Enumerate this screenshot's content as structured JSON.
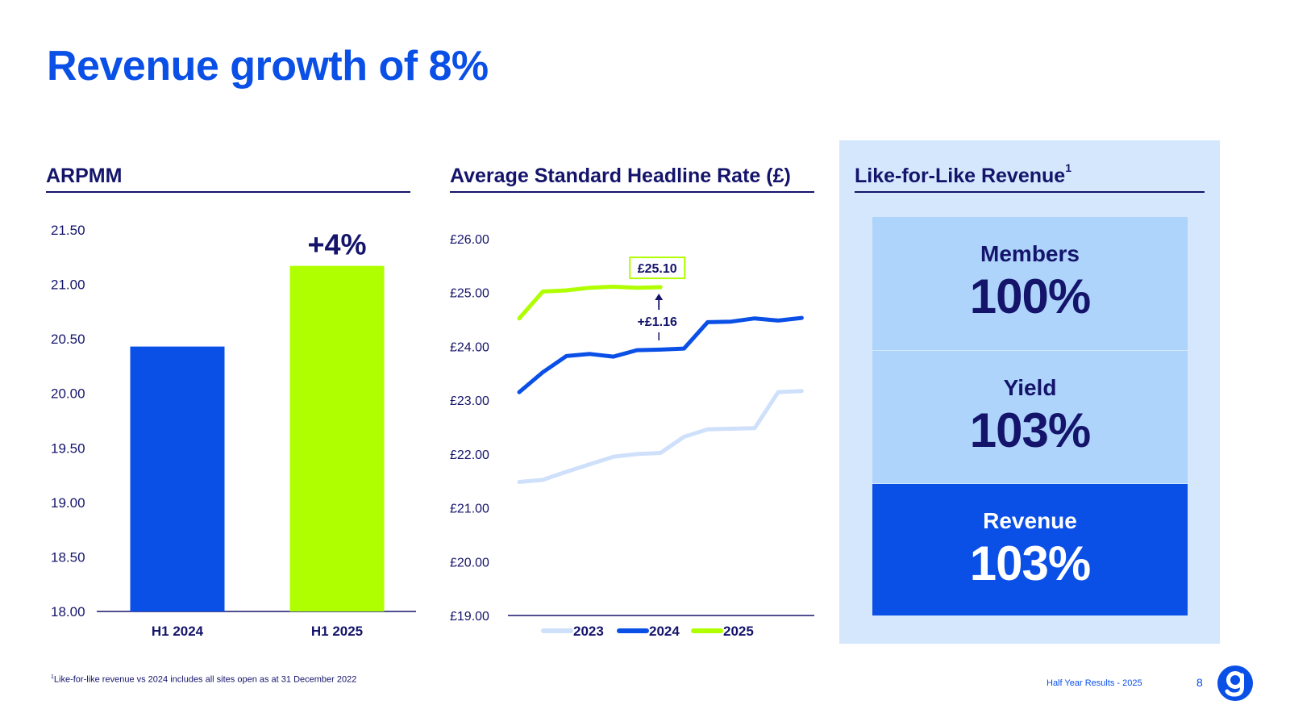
{
  "title": "Revenue growth of 8%",
  "arpmm": {
    "heading": "ARPMM",
    "annotation": "+4%"
  },
  "rate": {
    "heading": "Average Standard Headline Rate (£)",
    "callout_value": "£25.10",
    "callout_delta": "+£1.16"
  },
  "lfl": {
    "heading": "Like-for-Like Revenue",
    "heading_sup": "1",
    "cards": [
      {
        "label": "Members",
        "value": "100%"
      },
      {
        "label": "Yield",
        "value": "103%"
      },
      {
        "label": "Revenue",
        "value": "103%"
      }
    ]
  },
  "footnote": {
    "sup": "1",
    "text": "Like-for-like revenue vs 2024 includes all sites open as at 31 December 2022"
  },
  "footer": {
    "text": "Half Year Results - 2025",
    "page": "8"
  },
  "logo_icon": "g-logo-icon",
  "colors": {
    "brand_blue": "#0a4fe6",
    "navy": "#14146b",
    "lime": "#b0ff00",
    "light_blue": "#cfe0fb",
    "panel_bg": "#d4e7fc",
    "card_bg": "#aed4fc"
  },
  "chart_data": [
    {
      "type": "bar",
      "categories": [
        "H1 2024",
        "H1 2025"
      ],
      "values": [
        20.43,
        21.17
      ],
      "colors": [
        "#0a4fe6",
        "#b0ff00"
      ],
      "ylim": [
        18.0,
        21.5
      ],
      "yticks": [
        "21.50",
        "21.00",
        "20.50",
        "20.00",
        "19.50",
        "19.00",
        "18.50",
        "18.00"
      ],
      "ytick_values": [
        21.5,
        21.0,
        20.5,
        20.0,
        19.5,
        19.0,
        18.5,
        18.0
      ],
      "grid": false
    },
    {
      "type": "line",
      "ylim": [
        19.0,
        26.0
      ],
      "yticks": [
        "£26.00",
        "£25.00",
        "£24.00",
        "£23.00",
        "£22.00",
        "£21.00",
        "£20.00",
        "£19.00"
      ],
      "ytick_values": [
        26,
        25,
        24,
        23,
        22,
        21,
        20,
        19
      ],
      "grid": false,
      "legend_position": "bottom",
      "series": [
        {
          "name": "2023",
          "color": "#cfe0fb",
          "values": [
            21.48,
            21.52,
            21.67,
            21.81,
            21.95,
            22.0,
            22.02,
            22.32,
            22.46,
            22.47,
            22.48,
            23.15,
            23.17
          ]
        },
        {
          "name": "2024",
          "color": "#0a4fe6",
          "values": [
            23.15,
            23.52,
            23.82,
            23.86,
            23.81,
            23.93,
            23.94,
            23.96,
            24.45,
            24.46,
            24.52,
            24.48,
            24.53
          ]
        },
        {
          "name": "2025",
          "color": "#b0ff00",
          "values": [
            24.52,
            25.02,
            25.04,
            25.09,
            25.11,
            25.09,
            25.1
          ]
        }
      ]
    }
  ]
}
